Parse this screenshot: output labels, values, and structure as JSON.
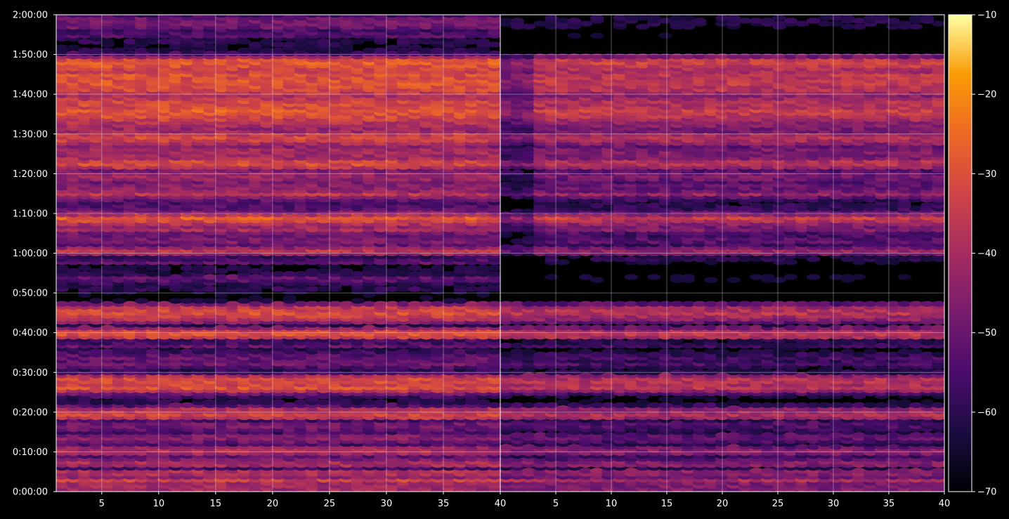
{
  "chart_data": {
    "type": "heatmap",
    "title": "",
    "xlabel": "",
    "ylabel": "",
    "colormap": "inferno",
    "background": "#000000",
    "grid": true,
    "panels": [
      {
        "xlim": [
          1,
          40
        ],
        "xticks": [
          5,
          10,
          15,
          20,
          25,
          30,
          35,
          40
        ],
        "columns": 39
      },
      {
        "xlim": [
          0,
          40
        ],
        "xticks": [
          5,
          10,
          15,
          20,
          25,
          30,
          35,
          40
        ],
        "columns": 39
      }
    ],
    "y_axis": {
      "range_seconds": [
        0,
        7200
      ],
      "tick_labels": [
        "0:00:00",
        "0:10:00",
        "0:20:00",
        "0:30:00",
        "0:40:00",
        "0:50:00",
        "1:00:00",
        "1:10:00",
        "1:20:00",
        "1:30:00",
        "1:40:00",
        "1:50:00",
        "2:00:00"
      ]
    },
    "colorbar": {
      "range": [
        -70,
        -10
      ],
      "tick_labels": [
        "−70",
        "−60",
        "−50",
        "−40",
        "−30",
        "−20",
        "−10"
      ]
    },
    "row_profile_dB": [
      [
        0,
        -50
      ],
      [
        1,
        -38
      ],
      [
        2,
        -44
      ],
      [
        3,
        -34
      ],
      [
        4,
        -46
      ],
      [
        5,
        -33
      ],
      [
        6,
        -56
      ],
      [
        7,
        -35
      ],
      [
        8,
        -45
      ],
      [
        9,
        -52
      ],
      [
        10,
        -38
      ],
      [
        11,
        -40
      ],
      [
        12,
        -55
      ],
      [
        13,
        -48
      ],
      [
        14,
        -44
      ],
      [
        15,
        -56
      ],
      [
        16,
        -50
      ],
      [
        17,
        -47
      ],
      [
        18,
        -55
      ],
      [
        19,
        -30
      ],
      [
        20,
        -36
      ],
      [
        21,
        -39
      ],
      [
        22,
        -58
      ],
      [
        23,
        -64
      ],
      [
        24,
        -57
      ],
      [
        25,
        -47
      ],
      [
        26,
        -29
      ],
      [
        27,
        -33
      ],
      [
        28,
        -31
      ],
      [
        29,
        -33
      ],
      [
        30,
        -55
      ],
      [
        31,
        -60
      ],
      [
        32,
        -48
      ],
      [
        33,
        -52
      ],
      [
        34,
        -50
      ],
      [
        35,
        -56
      ],
      [
        36,
        -62
      ],
      [
        37,
        -48
      ],
      [
        38,
        -64
      ],
      [
        39,
        -34
      ],
      [
        40,
        -29
      ],
      [
        41,
        -37
      ],
      [
        42,
        -62
      ],
      [
        43,
        -41
      ],
      [
        44,
        -36
      ],
      [
        45,
        -31
      ],
      [
        46,
        -33
      ],
      [
        47,
        -39
      ],
      [
        48,
        -66
      ],
      [
        49,
        -68
      ],
      [
        50,
        -68
      ],
      [
        51,
        -60
      ],
      [
        52,
        -64
      ],
      [
        53,
        -54
      ],
      [
        54,
        -52
      ],
      [
        55,
        -64
      ],
      [
        56,
        -62
      ],
      [
        57,
        -68
      ],
      [
        58,
        -46
      ],
      [
        59,
        -64
      ],
      [
        60,
        -42
      ],
      [
        61,
        -35
      ],
      [
        62,
        -52
      ],
      [
        63,
        -47
      ],
      [
        64,
        -48
      ],
      [
        65,
        -52
      ],
      [
        66,
        -40
      ],
      [
        67,
        -43
      ],
      [
        68,
        -34
      ],
      [
        69,
        -28
      ],
      [
        70,
        -40
      ],
      [
        71,
        -52
      ],
      [
        72,
        -54
      ],
      [
        73,
        -56
      ],
      [
        74,
        -48
      ],
      [
        75,
        -37
      ],
      [
        76,
        -45
      ],
      [
        77,
        -44
      ],
      [
        78,
        -48
      ],
      [
        79,
        -42
      ],
      [
        80,
        -43
      ],
      [
        81,
        -48
      ],
      [
        82,
        -33
      ],
      [
        83,
        -30
      ],
      [
        84,
        -40
      ],
      [
        85,
        -42
      ],
      [
        86,
        -40
      ],
      [
        87,
        -45
      ],
      [
        88,
        -38
      ],
      [
        89,
        -31
      ],
      [
        90,
        -35
      ],
      [
        91,
        -44
      ],
      [
        92,
        -40
      ],
      [
        93,
        -38
      ],
      [
        94,
        -33
      ],
      [
        95,
        -30
      ],
      [
        96,
        -28
      ],
      [
        97,
        -33
      ],
      [
        98,
        -31
      ],
      [
        99,
        -36
      ],
      [
        100,
        -40
      ],
      [
        101,
        -32
      ],
      [
        102,
        -31
      ],
      [
        103,
        -29
      ],
      [
        104,
        -31
      ],
      [
        105,
        -30
      ],
      [
        106,
        -35
      ],
      [
        107,
        -30
      ],
      [
        108,
        -28
      ],
      [
        109,
        -30
      ],
      [
        110,
        -54
      ],
      [
        111,
        -62
      ],
      [
        112,
        -66
      ],
      [
        113,
        -60
      ],
      [
        114,
        -62
      ],
      [
        115,
        -52
      ],
      [
        116,
        -58
      ],
      [
        117,
        -50
      ],
      [
        118,
        -48
      ],
      [
        119,
        -48
      ],
      [
        120,
        -56
      ]
    ]
  }
}
